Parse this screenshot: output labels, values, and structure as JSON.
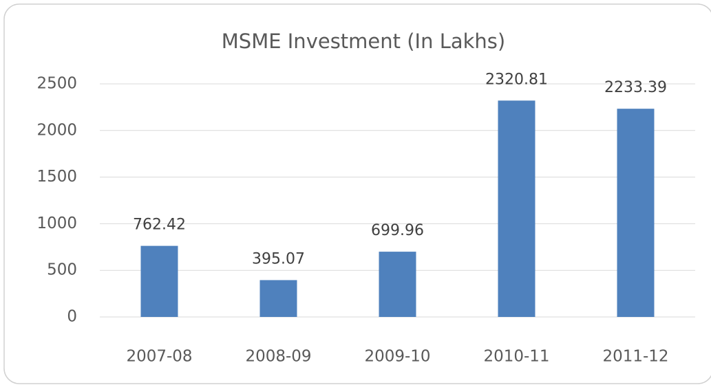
{
  "chart_data": {
    "type": "bar",
    "title": "MSME Investment (In Lakhs)",
    "categories": [
      "2007-08",
      "2008-09",
      "2009-10",
      "2010-11",
      "2011-12"
    ],
    "values": [
      762.42,
      395.07,
      699.96,
      2320.81,
      2233.39
    ],
    "color": "#4f81bd",
    "ylim": [
      0,
      2500
    ],
    "yticks": [
      0,
      500,
      1000,
      1500,
      2000,
      2500
    ],
    "grid": true
  }
}
